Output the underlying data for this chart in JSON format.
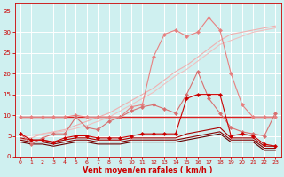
{
  "x": [
    0,
    1,
    2,
    3,
    4,
    5,
    6,
    7,
    8,
    9,
    10,
    11,
    12,
    13,
    14,
    15,
    16,
    17,
    18,
    19,
    20,
    21,
    22,
    23
  ],
  "series": [
    {
      "name": "line_lightest_pink_linear",
      "color": "#f0b0b0",
      "linewidth": 0.8,
      "marker": null,
      "markersize": 0,
      "y": [
        4.0,
        4.5,
        5.5,
        6.0,
        6.5,
        7.5,
        8.5,
        9.5,
        10.5,
        12.0,
        13.5,
        15.0,
        16.5,
        18.5,
        20.5,
        22.0,
        24.0,
        26.0,
        28.0,
        29.5,
        30.0,
        30.5,
        31.0,
        31.5
      ]
    },
    {
      "name": "line_light_pink_linear2",
      "color": "#f0c0c0",
      "linewidth": 0.8,
      "marker": null,
      "markersize": 0,
      "y": [
        5.0,
        5.2,
        5.5,
        5.8,
        6.2,
        6.8,
        7.5,
        8.5,
        9.5,
        11.0,
        12.5,
        14.0,
        15.5,
        17.5,
        19.5,
        21.0,
        23.0,
        25.0,
        27.0,
        28.0,
        29.0,
        30.0,
        30.5,
        31.0
      ]
    },
    {
      "name": "line_pink_with_markers_upper",
      "color": "#e88080",
      "linewidth": 0.8,
      "marker": "D",
      "markersize": 2.5,
      "y": [
        9.5,
        9.5,
        9.5,
        9.5,
        9.5,
        10.0,
        9.5,
        9.5,
        9.5,
        9.5,
        12.0,
        12.5,
        24.0,
        29.5,
        30.5,
        29.0,
        30.0,
        33.5,
        30.5,
        20.0,
        12.5,
        9.5,
        9.5,
        9.5
      ]
    },
    {
      "name": "line_medium_pink_markers",
      "color": "#d87070",
      "linewidth": 0.8,
      "marker": "D",
      "markersize": 2.5,
      "y": [
        5.5,
        3.0,
        4.5,
        5.5,
        5.5,
        9.5,
        7.0,
        6.5,
        8.5,
        9.5,
        11.0,
        12.0,
        12.5,
        11.5,
        10.5,
        15.0,
        20.5,
        14.0,
        10.5,
        7.0,
        6.0,
        5.5,
        5.0,
        10.5
      ]
    },
    {
      "name": "line_red_flat_upper",
      "color": "#dd2020",
      "linewidth": 1.0,
      "marker": null,
      "markersize": 0,
      "y": [
        9.5,
        9.5,
        9.5,
        9.5,
        9.5,
        9.5,
        9.5,
        9.5,
        9.5,
        9.5,
        9.5,
        9.5,
        9.5,
        9.5,
        9.5,
        9.5,
        9.5,
        9.5,
        9.5,
        9.5,
        9.5,
        9.5,
        9.5,
        9.5
      ]
    },
    {
      "name": "line_red_with_markers",
      "color": "#cc0000",
      "linewidth": 0.8,
      "marker": "D",
      "markersize": 2.5,
      "y": [
        5.5,
        4.0,
        4.0,
        3.5,
        4.5,
        5.0,
        5.0,
        4.5,
        4.5,
        4.5,
        5.0,
        5.5,
        5.5,
        5.5,
        5.5,
        14.0,
        15.0,
        15.0,
        15.0,
        5.0,
        5.5,
        5.0,
        3.0,
        2.5
      ]
    },
    {
      "name": "line_dark_red_1",
      "color": "#aa0000",
      "linewidth": 0.8,
      "marker": null,
      "markersize": 0,
      "y": [
        4.5,
        4.0,
        4.0,
        3.5,
        4.0,
        4.5,
        4.5,
        4.0,
        4.0,
        4.0,
        4.5,
        4.5,
        4.5,
        4.5,
        4.5,
        5.5,
        6.0,
        6.5,
        7.0,
        4.5,
        4.5,
        4.5,
        2.5,
        2.5
      ]
    },
    {
      "name": "line_dark_red_2",
      "color": "#880000",
      "linewidth": 0.8,
      "marker": null,
      "markersize": 0,
      "y": [
        4.0,
        3.5,
        3.5,
        3.0,
        3.5,
        4.0,
        4.0,
        3.5,
        3.5,
        3.5,
        4.0,
        4.0,
        4.0,
        4.0,
        4.0,
        4.5,
        5.0,
        5.5,
        6.0,
        4.0,
        4.0,
        4.0,
        2.0,
        2.0
      ]
    },
    {
      "name": "line_darkest_red",
      "color": "#660000",
      "linewidth": 0.8,
      "marker": null,
      "markersize": 0,
      "y": [
        3.5,
        3.0,
        3.0,
        2.5,
        3.0,
        3.5,
        3.5,
        3.0,
        3.0,
        3.0,
        3.5,
        3.5,
        3.5,
        3.5,
        3.5,
        4.0,
        4.5,
        5.0,
        5.5,
        3.5,
        3.5,
        3.5,
        1.5,
        1.5
      ]
    }
  ],
  "xlabel": "Vent moyen/en rafales ( km/h )",
  "xlim": [
    -0.5,
    23.5
  ],
  "ylim": [
    0,
    37
  ],
  "yticks": [
    0,
    5,
    10,
    15,
    20,
    25,
    30,
    35
  ],
  "xticks": [
    0,
    1,
    2,
    3,
    4,
    5,
    6,
    7,
    8,
    9,
    10,
    11,
    12,
    13,
    14,
    15,
    16,
    17,
    18,
    19,
    20,
    21,
    22,
    23
  ],
  "bg_color": "#cff0f0",
  "grid_color": "#b0e0e0",
  "tick_color": "#cc0000",
  "label_color": "#cc0000"
}
